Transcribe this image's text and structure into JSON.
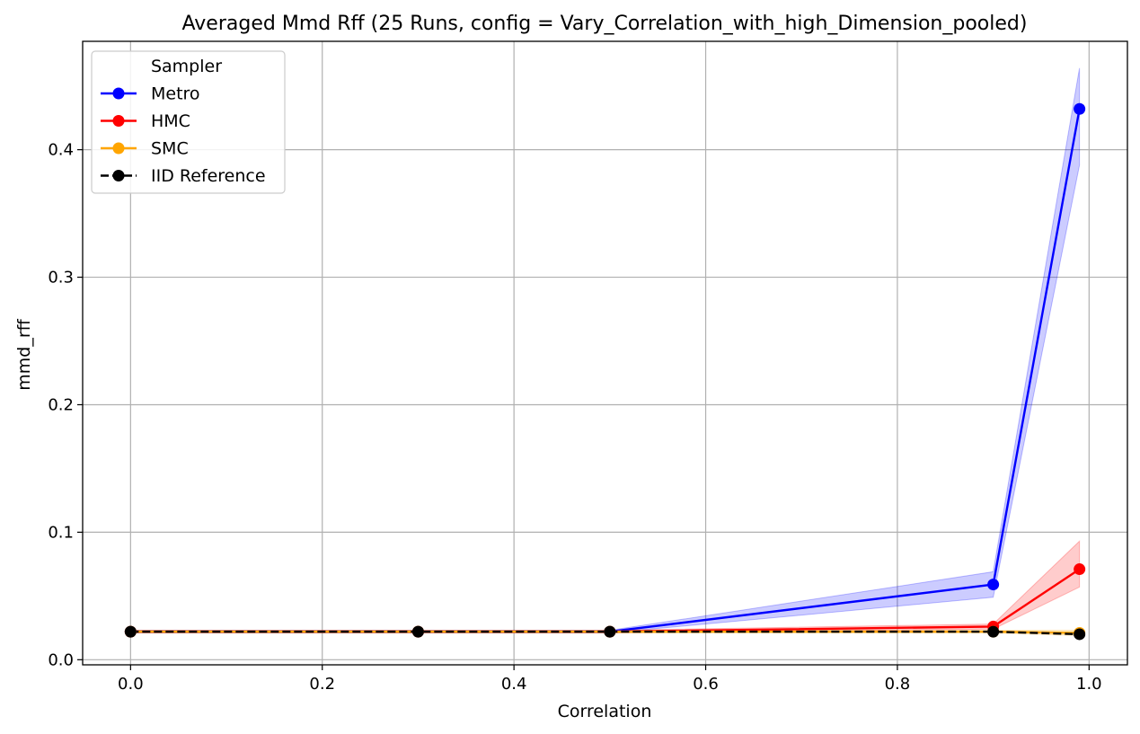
{
  "chart_data": {
    "type": "line",
    "title": "Averaged Mmd Rff (25 Runs, config = Vary_Correlation_with_high_Dimension_pooled)",
    "xlabel": "Correlation",
    "ylabel": "mmd_rff",
    "x": [
      0.0,
      0.3,
      0.5,
      0.9,
      0.99
    ],
    "xlim": [
      -0.05,
      1.04
    ],
    "ylim": [
      -0.004,
      0.485
    ],
    "xticks": [
      0.0,
      0.2,
      0.4,
      0.6,
      0.8,
      1.0
    ],
    "xtick_labels": [
      "0.0",
      "0.2",
      "0.4",
      "0.6",
      "0.8",
      "1.0"
    ],
    "yticks": [
      0.0,
      0.1,
      0.2,
      0.3,
      0.4
    ],
    "ytick_labels": [
      "0.0",
      "0.1",
      "0.2",
      "0.3",
      "0.4"
    ],
    "grid": true,
    "legend": {
      "title": "Sampler",
      "placement": "top-left"
    },
    "series": [
      {
        "name": "Metro",
        "color": "#0000ff",
        "style": "solid",
        "values": [
          0.022,
          0.022,
          0.022,
          0.059,
          0.432
        ],
        "band_low": [
          0.021,
          0.021,
          0.021,
          0.049,
          0.388
        ],
        "band_high": [
          0.023,
          0.023,
          0.023,
          0.069,
          0.464
        ]
      },
      {
        "name": "HMC",
        "color": "#ff0000",
        "style": "solid",
        "values": [
          0.022,
          0.022,
          0.022,
          0.026,
          0.071
        ],
        "band_low": [
          0.021,
          0.021,
          0.021,
          0.024,
          0.057
        ],
        "band_high": [
          0.023,
          0.023,
          0.023,
          0.028,
          0.093
        ]
      },
      {
        "name": "SMC",
        "color": "#ffa500",
        "style": "solid",
        "values": [
          0.022,
          0.022,
          0.022,
          0.022,
          0.021
        ],
        "band_low": [
          0.021,
          0.021,
          0.021,
          0.021,
          0.019
        ],
        "band_high": [
          0.023,
          0.023,
          0.023,
          0.023,
          0.023
        ]
      },
      {
        "name": "IID Reference",
        "color": "#000000",
        "style": "dashed",
        "values": [
          0.022,
          0.022,
          0.022,
          0.022,
          0.02
        ]
      }
    ]
  }
}
